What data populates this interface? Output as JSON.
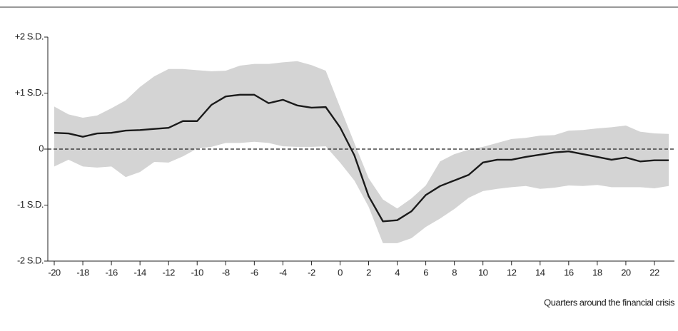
{
  "chart_data": {
    "type": "line",
    "x_label": "Quarters around the financial crisis",
    "x": [
      -20,
      -19,
      -18,
      -17,
      -16,
      -15,
      -14,
      -13,
      -12,
      -11,
      -10,
      -9,
      -8,
      -7,
      -6,
      -5,
      -4,
      -3,
      -2,
      -1,
      0,
      1,
      2,
      3,
      4,
      5,
      6,
      7,
      8,
      9,
      10,
      11,
      12,
      13,
      14,
      15,
      16,
      17,
      18,
      19,
      20,
      21,
      22,
      23
    ],
    "line": {
      "color": "#1a1a1a",
      "values": [
        0.29,
        0.28,
        0.22,
        0.28,
        0.29,
        0.33,
        0.34,
        0.36,
        0.38,
        0.5,
        0.5,
        0.79,
        0.94,
        0.97,
        0.97,
        0.82,
        0.88,
        0.78,
        0.74,
        0.75,
        0.39,
        -0.11,
        -0.84,
        -1.29,
        -1.27,
        -1.11,
        -0.82,
        -0.66,
        -0.56,
        -0.46,
        -0.24,
        -0.19,
        -0.19,
        -0.14,
        -0.1,
        -0.06,
        -0.04,
        -0.09,
        -0.14,
        -0.19,
        -0.15,
        -0.22,
        -0.2,
        -0.2
      ]
    },
    "band": {
      "color": "#d4d4d4",
      "upper": [
        0.76,
        0.62,
        0.56,
        0.6,
        0.73,
        0.87,
        1.11,
        1.3,
        1.43,
        1.43,
        1.41,
        1.39,
        1.4,
        1.49,
        1.52,
        1.52,
        1.55,
        1.57,
        1.5,
        1.4,
        0.75,
        0.11,
        -0.52,
        -0.9,
        -1.06,
        -0.88,
        -0.65,
        -0.22,
        -0.09,
        -0.01,
        0.04,
        0.11,
        0.18,
        0.2,
        0.24,
        0.25,
        0.33,
        0.34,
        0.37,
        0.39,
        0.42,
        0.31,
        0.28,
        0.27
      ],
      "lower": [
        -0.31,
        -0.19,
        -0.31,
        -0.33,
        -0.31,
        -0.5,
        -0.41,
        -0.23,
        -0.24,
        -0.13,
        0.01,
        0.04,
        0.11,
        0.11,
        0.13,
        0.11,
        0.05,
        0.04,
        0.04,
        0.05,
        -0.24,
        -0.56,
        -1.03,
        -1.68,
        -1.68,
        -1.59,
        -1.39,
        -1.24,
        -1.07,
        -0.87,
        -0.75,
        -0.71,
        -0.68,
        -0.66,
        -0.71,
        -0.69,
        -0.65,
        -0.66,
        -0.64,
        -0.68,
        -0.68,
        -0.68,
        -0.7,
        -0.66
      ]
    },
    "hline": 0,
    "xlim": [
      -20.45,
      23.4
    ],
    "ylim": [
      -2,
      2
    ],
    "xticks": [
      -20,
      -18,
      -16,
      -14,
      -12,
      -10,
      -8,
      -6,
      -4,
      -2,
      0,
      2,
      4,
      6,
      8,
      10,
      12,
      14,
      16,
      18,
      20,
      22
    ],
    "yticks": [
      {
        "value": -2,
        "label": "-2 S.D."
      },
      {
        "value": -1,
        "label": "-1 S.D."
      },
      0,
      {
        "value": 1,
        "label": "+1 S.D."
      },
      {
        "value": 2,
        "label": "+2 S.D."
      }
    ]
  }
}
